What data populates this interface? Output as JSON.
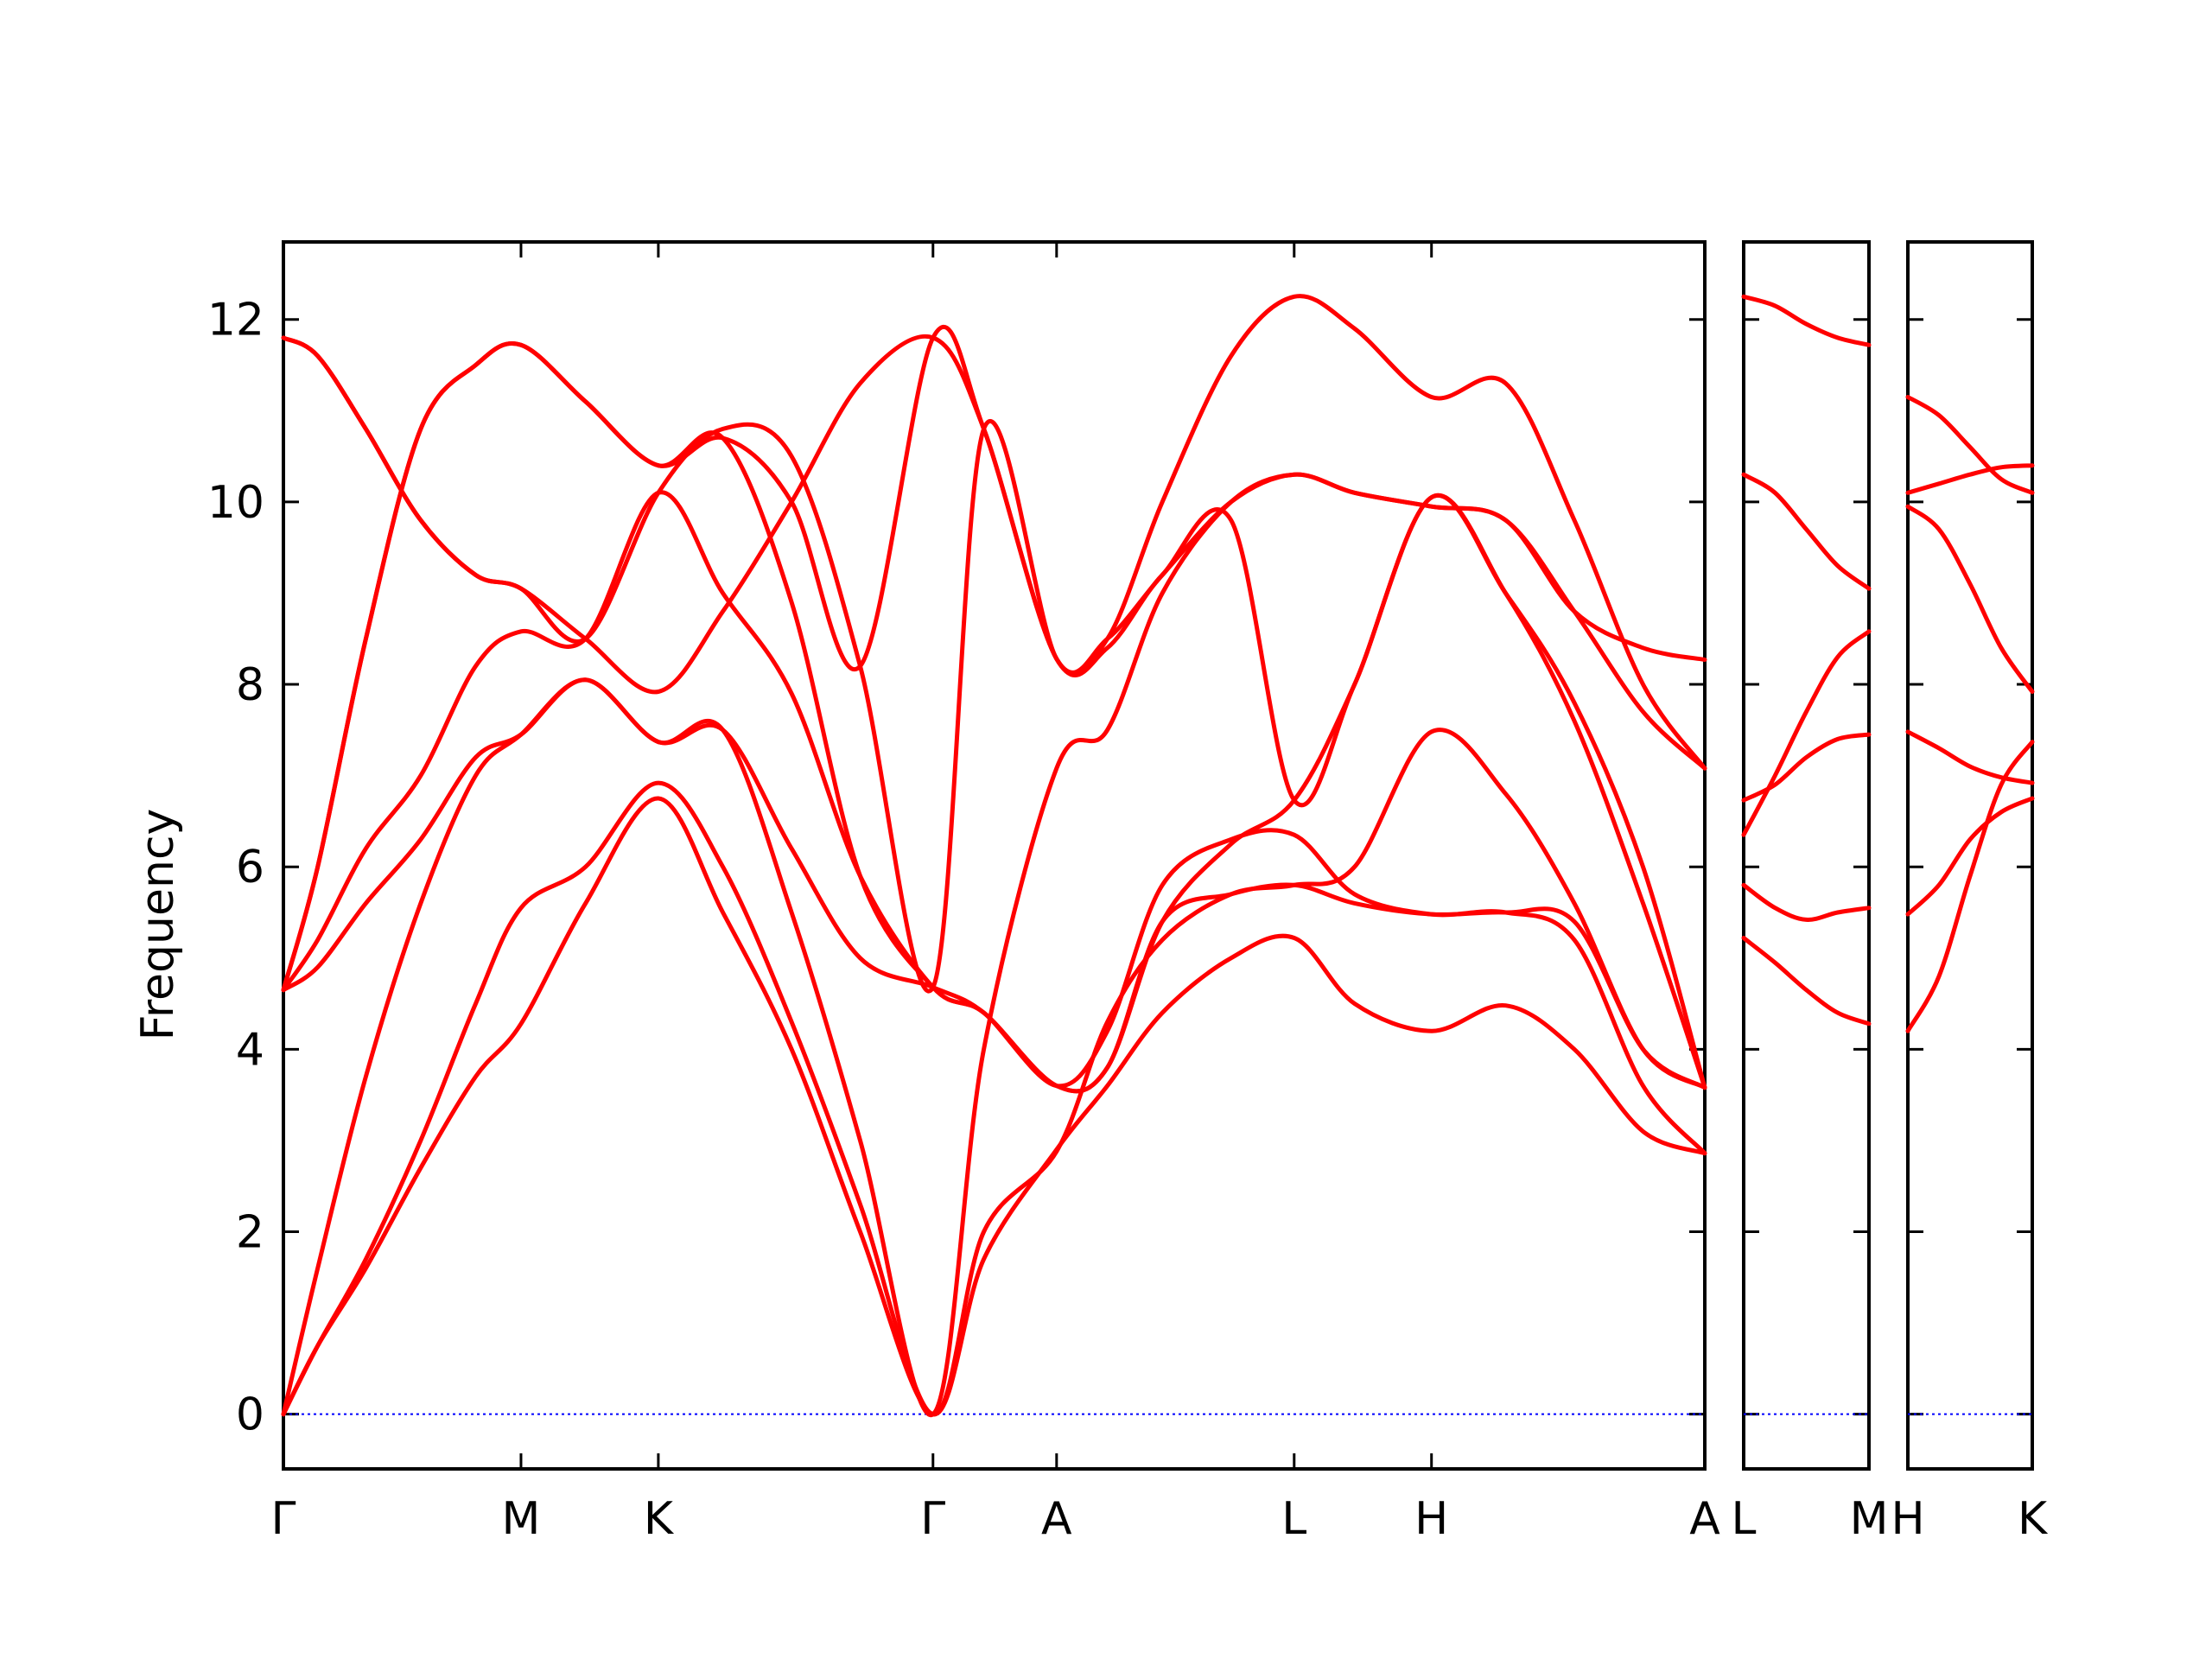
{
  "chart_data": {
    "type": "line",
    "ylabel": "Frequency",
    "ylim": [
      -0.6,
      12.85
    ],
    "yticks": [
      0,
      2,
      4,
      6,
      8,
      10,
      12
    ],
    "line_color": "#ff0000",
    "zero_line_color": "#0000ff",
    "grid": false,
    "panels": [
      {
        "xlim": [
          0,
          10.35
        ],
        "xticks": [
          {
            "x": 0,
            "label": "Γ"
          },
          {
            "x": 1.73,
            "label": "M"
          },
          {
            "x": 2.73,
            "label": "K"
          },
          {
            "x": 4.73,
            "label": "Γ"
          },
          {
            "x": 5.63,
            "label": "A"
          },
          {
            "x": 7.36,
            "label": "L"
          },
          {
            "x": 8.36,
            "label": "H"
          },
          {
            "x": 10.35,
            "label": "A"
          }
        ],
        "series": [
          {
            "x": [
              0,
              0.25,
              0.6,
              1.0,
              1.4,
              1.73,
              2.2,
              2.73,
              3.2,
              3.7,
              4.2,
              4.73,
              5.1,
              5.63,
              6.0,
              6.4,
              6.9,
              7.36,
              7.8,
              8.36,
              8.9,
              9.4,
              9.9,
              10.35
            ],
            "values": [
              0,
              0.75,
              1.6,
              2.7,
              3.7,
              4.28,
              5.6,
              6.75,
              5.5,
              4.0,
              2.0,
              0,
              1.7,
              2.9,
              3.6,
              4.4,
              5.0,
              5.22,
              4.5,
              4.2,
              4.48,
              4.0,
              3.1,
              2.86
            ]
          },
          {
            "x": [
              0,
              0.25,
              0.6,
              1.0,
              1.4,
              1.73,
              2.2,
              2.73,
              3.2,
              3.7,
              4.2,
              4.73,
              5.1,
              5.63,
              6.0,
              6.4,
              6.9,
              7.36,
              7.8,
              8.36,
              8.9,
              9.4,
              9.9,
              10.35
            ],
            "values": [
              0,
              0.75,
              1.7,
              3.0,
              4.5,
              5.55,
              6.0,
              6.92,
              6.0,
              4.3,
              2.3,
              0,
              2.0,
              2.88,
              4.3,
              5.2,
              5.7,
              5.8,
              6.0,
              7.48,
              6.8,
              5.6,
              4.0,
              3.58
            ]
          },
          {
            "x": [
              0,
              0.25,
              0.6,
              1.0,
              1.4,
              1.73,
              2.2,
              2.73,
              3.2,
              3.7,
              4.2,
              4.73,
              5.1,
              5.63,
              6.0,
              6.4,
              6.9,
              7.36,
              7.8,
              8.36,
              8.9,
              9.4,
              9.9,
              10.35
            ],
            "values": [
              0,
              1.6,
              3.7,
              5.6,
              7.0,
              7.45,
              8.05,
              7.37,
              7.5,
              5.5,
              3.0,
              0,
              4.0,
              7.08,
              7.5,
              9.0,
              10.0,
              10.3,
              10.1,
              9.95,
              9.8,
              8.8,
              7.7,
              7.08
            ]
          },
          {
            "x": [
              0,
              0.25,
              0.6,
              1.0,
              1.4,
              1.73,
              2.2,
              2.73,
              3.2,
              3.7,
              4.2,
              4.73,
              5.1,
              5.63,
              6.0,
              6.4,
              6.9,
              7.36,
              7.8,
              8.36,
              8.9,
              9.4,
              9.9,
              10.35
            ],
            "values": [
              4.65,
              4.9,
              5.6,
              6.3,
              7.2,
              7.45,
              8.05,
              7.37,
              7.5,
              6.2,
              5.0,
              4.68,
              4.4,
              3.6,
              3.8,
              5.4,
              5.7,
              5.8,
              5.6,
              5.48,
              5.5,
              5.4,
              4.0,
              3.58
            ]
          },
          {
            "x": [
              0,
              0.25,
              0.6,
              1.0,
              1.4,
              1.73,
              2.2,
              2.73,
              3.2,
              3.7,
              4.2,
              4.73,
              5.1,
              5.63,
              6.0,
              6.4,
              6.9,
              7.36,
              7.8,
              8.36,
              8.9,
              9.4,
              9.9,
              10.35
            ],
            "values": [
              4.65,
              5.2,
              6.2,
              7.0,
              8.2,
              8.58,
              8.5,
              10.1,
              9.0,
              7.9,
              5.9,
              4.68,
              4.4,
              3.6,
              4.2,
              5.8,
              6.3,
              6.35,
              5.7,
              5.48,
              5.5,
              5.2,
              3.6,
              2.86
            ]
          },
          {
            "x": [
              0,
              0.25,
              0.6,
              1.0,
              1.4,
              1.73,
              2.2,
              2.73,
              3.2,
              3.7,
              4.2,
              4.73,
              5.1,
              5.63,
              6.0,
              6.4,
              6.9,
              7.36,
              7.8,
              8.36,
              8.9,
              9.4,
              9.9,
              10.35
            ],
            "values": [
              11.8,
              11.6,
              10.8,
              9.8,
              9.2,
              9.05,
              8.5,
              7.92,
              8.8,
              10.0,
              11.3,
              11.8,
              10.8,
              8.28,
              8.4,
              9.2,
              9.8,
              6.73,
              8.0,
              10.05,
              9.0,
              7.6,
              5.6,
              3.58
            ]
          },
          {
            "x": [
              0,
              0.25,
              0.6,
              1.0,
              1.4,
              1.73,
              2.2,
              2.73,
              3.2,
              3.7,
              4.2,
              4.73,
              5.1,
              5.63,
              6.0,
              6.4,
              6.9,
              7.36,
              7.8,
              8.36,
              8.9,
              9.4,
              9.9,
              10.35
            ],
            "values": [
              4.65,
              6.0,
              8.5,
              10.8,
              11.5,
              11.72,
              11.1,
              10.4,
              10.7,
              8.9,
              5.9,
              4.68,
              4.4,
              3.6,
              3.8,
              5.4,
              6.25,
              6.73,
              8.0,
              10.05,
              9.0,
              7.8,
              6.0,
              3.58
            ]
          },
          {
            "x": [
              0,
              0.25,
              0.6,
              1.0,
              1.4,
              1.73,
              2.2,
              2.73,
              3.2,
              3.7,
              4.2,
              4.73,
              5.1,
              5.63,
              6.0,
              6.4,
              6.9,
              7.36,
              7.8,
              8.36,
              8.9,
              9.4,
              9.9,
              10.35
            ],
            "values": [
              11.8,
              11.6,
              10.8,
              9.8,
              9.2,
              9.05,
              8.5,
              10.1,
              10.8,
              10.5,
              8.2,
              4.68,
              10.8,
              8.28,
              8.5,
              10.0,
              11.6,
              12.25,
              11.9,
              11.15,
              11.3,
              9.8,
              8.0,
              7.08
            ]
          },
          {
            "x": [
              0,
              0.25,
              0.6,
              1.0,
              1.4,
              1.73,
              2.2,
              2.73,
              3.2,
              3.7,
              4.2,
              4.73,
              5.1,
              5.63,
              6.0,
              6.4,
              6.9,
              7.36,
              7.8,
              8.36,
              8.9,
              9.4,
              9.9,
              10.35
            ],
            "values": [
              4.65,
              6.0,
              8.5,
              10.8,
              11.5,
              11.72,
              11.1,
              10.4,
              10.7,
              10.0,
              8.2,
              11.8,
              10.8,
              8.28,
              8.5,
              9.2,
              10.0,
              10.3,
              10.1,
              9.95,
              9.8,
              8.8,
              8.4,
              8.27
            ]
          }
        ]
      },
      {
        "xlim": [
          0,
          1.0
        ],
        "xticks": [
          {
            "x": 0,
            "label": "L"
          },
          {
            "x": 1.0,
            "label": "M"
          }
        ],
        "series": [
          {
            "x": [
              0,
              0.25,
              0.5,
              0.75,
              1.0
            ],
            "values": [
              12.25,
              12.15,
              11.95,
              11.8,
              11.72
            ]
          },
          {
            "x": [
              0,
              0.25,
              0.5,
              0.75,
              1.0
            ],
            "values": [
              10.3,
              10.1,
              9.7,
              9.3,
              9.05
            ]
          },
          {
            "x": [
              0,
              0.25,
              0.5,
              0.75,
              1.0
            ],
            "values": [
              6.73,
              6.9,
              7.2,
              7.4,
              7.45
            ]
          },
          {
            "x": [
              0,
              0.25,
              0.5,
              0.75,
              1.0
            ],
            "values": [
              6.35,
              7.0,
              7.7,
              8.3,
              8.58
            ]
          },
          {
            "x": [
              0,
              0.25,
              0.5,
              0.75,
              1.0
            ],
            "values": [
              5.8,
              5.55,
              5.42,
              5.5,
              5.55
            ]
          },
          {
            "x": [
              0,
              0.25,
              0.5,
              0.75,
              1.0
            ],
            "values": [
              5.22,
              4.95,
              4.65,
              4.4,
              4.28
            ]
          }
        ]
      },
      {
        "xlim": [
          0,
          1.0
        ],
        "xticks": [
          {
            "x": 0,
            "label": "H"
          },
          {
            "x": 1.0,
            "label": "K"
          }
        ],
        "series": [
          {
            "x": [
              0,
              0.25,
              0.5,
              0.75,
              1.0
            ],
            "values": [
              11.15,
              10.95,
              10.6,
              10.25,
              10.1
            ]
          },
          {
            "x": [
              0,
              0.25,
              0.5,
              0.75,
              1.0
            ],
            "values": [
              10.1,
              10.2,
              10.3,
              10.38,
              10.4
            ]
          },
          {
            "x": [
              0,
              0.25,
              0.5,
              0.75,
              1.0
            ],
            "values": [
              9.95,
              9.7,
              9.1,
              8.4,
              7.92
            ]
          },
          {
            "x": [
              0,
              0.25,
              0.5,
              0.75,
              1.0
            ],
            "values": [
              7.48,
              7.3,
              7.1,
              6.98,
              6.92
            ]
          },
          {
            "x": [
              0,
              0.25,
              0.5,
              0.75,
              1.0
            ],
            "values": [
              5.48,
              5.8,
              6.3,
              6.6,
              6.75
            ]
          },
          {
            "x": [
              0,
              0.25,
              0.5,
              0.75,
              1.0
            ],
            "values": [
              4.2,
              4.8,
              5.9,
              6.9,
              7.37
            ]
          }
        ]
      }
    ]
  }
}
